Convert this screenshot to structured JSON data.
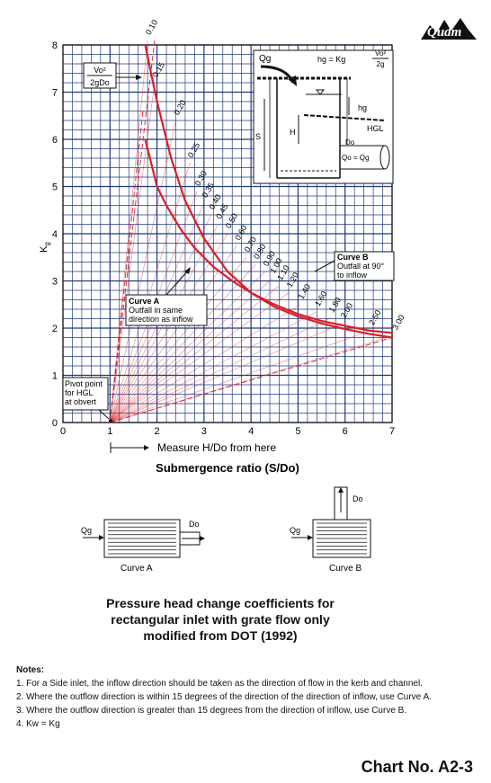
{
  "logo_text": "Qudm",
  "chart_data": {
    "type": "line",
    "xlabel": "Submergence ratio (S/Do)",
    "ylabel": "Kg",
    "xlim": [
      0,
      7
    ],
    "ylim": [
      0,
      8
    ],
    "x_ticks": [
      "0",
      "1",
      "2",
      "3",
      "4",
      "5",
      "6",
      "7"
    ],
    "y_ticks": [
      "0",
      "1",
      "2",
      "3",
      "4",
      "5",
      "6",
      "7",
      "8"
    ],
    "grid": true,
    "measure_note": "Measure H/Do from here",
    "series": [
      {
        "name": "Curve A",
        "x": [
          1.75,
          2.0,
          2.2,
          2.5,
          2.8,
          3.2,
          3.6,
          4.0,
          4.5,
          5.0,
          5.5,
          6.0,
          6.5,
          7.0
        ],
        "y": [
          6.0,
          5.0,
          4.6,
          4.1,
          3.7,
          3.3,
          3.0,
          2.75,
          2.5,
          2.3,
          2.15,
          2.05,
          1.95,
          1.9
        ]
      },
      {
        "name": "Curve B",
        "x": [
          1.75,
          2.0,
          2.3,
          2.6,
          3.0,
          3.5,
          4.0,
          4.5,
          5.0,
          5.5,
          6.0,
          6.5,
          7.0
        ],
        "y": [
          8.0,
          6.8,
          5.6,
          4.7,
          3.9,
          3.2,
          2.75,
          2.45,
          2.25,
          2.1,
          1.98,
          1.88,
          1.8
        ]
      }
    ],
    "hd_labels": [
      {
        "label": "0.10",
        "x": 1.85,
        "y": 8.2
      },
      {
        "label": "0.15",
        "x": 2.0,
        "y": 7.3
      },
      {
        "label": "0.20",
        "x": 2.45,
        "y": 6.5
      },
      {
        "label": "0.25",
        "x": 2.75,
        "y": 5.6
      },
      {
        "label": "0.30",
        "x": 2.9,
        "y": 5.0
      },
      {
        "label": "0.35",
        "x": 3.05,
        "y": 4.75
      },
      {
        "label": "0.40",
        "x": 3.2,
        "y": 4.5
      },
      {
        "label": "0.45",
        "x": 3.35,
        "y": 4.3
      },
      {
        "label": "0.50",
        "x": 3.55,
        "y": 4.1
      },
      {
        "label": "0.60",
        "x": 3.75,
        "y": 3.85
      },
      {
        "label": "0.70",
        "x": 3.95,
        "y": 3.6
      },
      {
        "label": "0.80",
        "x": 4.15,
        "y": 3.45
      },
      {
        "label": "0.90",
        "x": 4.35,
        "y": 3.3
      },
      {
        "label": "1.00",
        "x": 4.5,
        "y": 3.15
      },
      {
        "label": "1.10",
        "x": 4.65,
        "y": 3.0
      },
      {
        "label": "1.20",
        "x": 4.85,
        "y": 2.85
      },
      {
        "label": "1.40",
        "x": 5.1,
        "y": 2.6
      },
      {
        "label": "1.60",
        "x": 5.45,
        "y": 2.45
      },
      {
        "label": "1.80",
        "x": 5.75,
        "y": 2.32
      },
      {
        "label": "2.00",
        "x": 6.0,
        "y": 2.2
      },
      {
        "label": "2.50",
        "x": 6.6,
        "y": 2.05
      },
      {
        "label": "3.00",
        "x": 7.1,
        "y": 1.95
      }
    ],
    "annotations": {
      "v2_numerator": "Vo²",
      "v2_denominator": "2gDo",
      "curve_a_title": "Curve A",
      "curve_a_desc": [
        "Outfall in same",
        "direction as inflow"
      ],
      "curve_b_title": "Curve B",
      "curve_b_desc": [
        "Outfall at 90°",
        "to inflow"
      ],
      "pivot": [
        "Pivot point",
        "for HGL",
        "at obvert"
      ]
    },
    "inset": {
      "qg": "Qg",
      "hg_formula_lhs": "hg = Kg",
      "hg_num": "Vo²",
      "hg_den": "2g",
      "hg": "hg",
      "hgl": "HGL",
      "h": "H",
      "s": "S",
      "do": "Do",
      "qo_eq": "Qo = Qg"
    }
  },
  "inlets": {
    "qg": "Qg",
    "do": "Do",
    "curve_a": "Curve A",
    "curve_b": "Curve B"
  },
  "title_lines": [
    "Pressure head change coefficients for",
    "rectangular inlet with grate flow only",
    "modified from DOT (1992)"
  ],
  "notes": {
    "heading": "Notes:",
    "items": [
      "1. For a Side inlet, the inflow direction should be taken as the direction of flow in the kerb and channel.",
      "2. Where the outflow direction is within 15 degrees of the direction of the direction of inflow, use Curve A.",
      "3. Where the outflow direction is greater than 15 degrees from the direction of inflow, use Curve B.",
      "4. Kw = Kg"
    ]
  },
  "chart_number": "Chart No. A2-3",
  "colors": {
    "curve": "#d8202a",
    "grid": "#1f3a7a",
    "dashed": "#d8202a"
  }
}
